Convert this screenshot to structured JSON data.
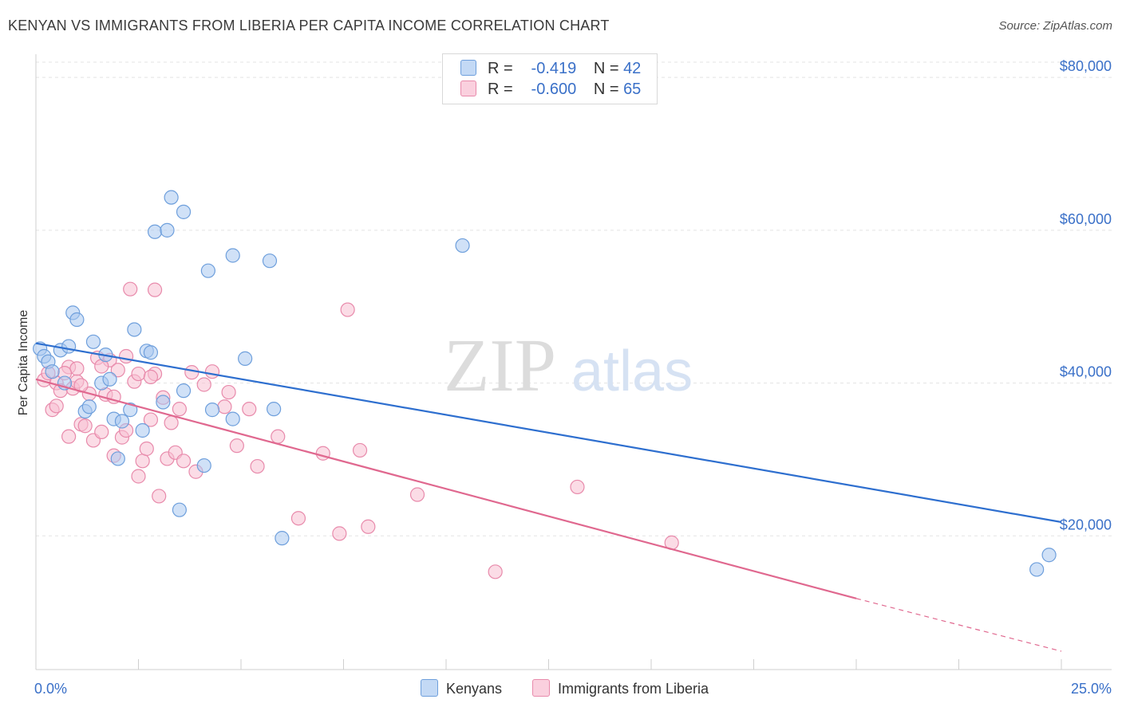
{
  "header": {
    "title": "KENYAN VS IMMIGRANTS FROM LIBERIA PER CAPITA INCOME CORRELATION CHART",
    "source": "Source: ZipAtlas.com"
  },
  "stats_legend": [
    {
      "r_label": "R =",
      "r_value": "-0.419",
      "n_label": "N =",
      "n_value": "42"
    },
    {
      "r_label": "R =",
      "r_value": "-0.600",
      "n_label": "N =",
      "n_value": "65"
    }
  ],
  "watermark": {
    "zip": "ZIP",
    "atlas": "atlas"
  },
  "colors": {
    "kenyans_fill": "#a9c8f0",
    "kenyans_stroke": "#6e9fdc",
    "kenyans_line": "#2e6fcf",
    "liberia_fill": "#f7bfd2",
    "liberia_stroke": "#e88aab",
    "liberia_line": "#e0688f",
    "axis_label": "#3a70c8",
    "grid": "#e3e3e3"
  },
  "chart_data": {
    "type": "scatter",
    "title": "KENYAN VS IMMIGRANTS FROM LIBERIA PER CAPITA INCOME CORRELATION CHART",
    "xlabel": "",
    "ylabel": "Per Capita Income",
    "xlim": [
      0,
      25
    ],
    "ylim": [
      2500,
      82000
    ],
    "x_tick_labels": [
      "0.0%",
      "25.0%"
    ],
    "y_ticks": [
      20000,
      40000,
      60000,
      80000
    ],
    "y_tick_labels": [
      "$20,000",
      "$40,000",
      "$60,000",
      "$80,000"
    ],
    "grid": true,
    "legend_position": "bottom",
    "series": [
      {
        "name": "Kenyans",
        "points": [
          [
            0.1,
            44.5
          ],
          [
            0.2,
            43.5
          ],
          [
            0.3,
            42.8
          ],
          [
            0.4,
            41.5
          ],
          [
            0.6,
            44.3
          ],
          [
            0.7,
            40.0
          ],
          [
            0.8,
            44.8
          ],
          [
            0.9,
            49.2
          ],
          [
            1.0,
            48.3
          ],
          [
            1.2,
            36.3
          ],
          [
            1.3,
            36.9
          ],
          [
            1.4,
            45.4
          ],
          [
            1.6,
            40.0
          ],
          [
            1.7,
            43.7
          ],
          [
            1.8,
            40.5
          ],
          [
            1.9,
            35.3
          ],
          [
            2.0,
            30.1
          ],
          [
            2.1,
            35.0
          ],
          [
            2.3,
            36.5
          ],
          [
            2.4,
            47.0
          ],
          [
            2.6,
            33.8
          ],
          [
            2.7,
            44.2
          ],
          [
            2.8,
            44.0
          ],
          [
            2.9,
            59.8
          ],
          [
            3.1,
            37.5
          ],
          [
            3.2,
            60.0
          ],
          [
            3.3,
            64.3
          ],
          [
            3.5,
            23.4
          ],
          [
            3.6,
            39.0
          ],
          [
            3.6,
            62.4
          ],
          [
            4.1,
            29.2
          ],
          [
            4.2,
            54.7
          ],
          [
            4.3,
            36.5
          ],
          [
            4.8,
            56.7
          ],
          [
            4.8,
            35.3
          ],
          [
            5.1,
            43.2
          ],
          [
            5.7,
            56.0
          ],
          [
            5.8,
            36.6
          ],
          [
            6.0,
            19.7
          ],
          [
            10.4,
            58.0
          ],
          [
            24.4,
            15.6
          ],
          [
            24.7,
            17.5
          ]
        ]
      },
      {
        "name": "Immigrants from Liberia",
        "points": [
          [
            0.2,
            40.4
          ],
          [
            0.3,
            41.3
          ],
          [
            0.4,
            36.5
          ],
          [
            0.5,
            40.0
          ],
          [
            0.5,
            37.0
          ],
          [
            0.6,
            39.0
          ],
          [
            0.8,
            33.0
          ],
          [
            0.8,
            42.1
          ],
          [
            0.9,
            39.3
          ],
          [
            1.0,
            40.2
          ],
          [
            1.0,
            41.9
          ],
          [
            1.1,
            34.6
          ],
          [
            1.2,
            34.4
          ],
          [
            1.3,
            38.6
          ],
          [
            1.4,
            32.5
          ],
          [
            1.5,
            43.3
          ],
          [
            1.6,
            33.6
          ],
          [
            1.7,
            38.5
          ],
          [
            1.8,
            43.0
          ],
          [
            1.9,
            38.2
          ],
          [
            1.9,
            30.5
          ],
          [
            2.0,
            41.7
          ],
          [
            2.1,
            32.9
          ],
          [
            2.2,
            33.8
          ],
          [
            2.3,
            52.3
          ],
          [
            2.4,
            40.2
          ],
          [
            2.5,
            27.8
          ],
          [
            2.5,
            41.2
          ],
          [
            2.6,
            29.8
          ],
          [
            2.7,
            31.4
          ],
          [
            2.8,
            35.2
          ],
          [
            2.9,
            52.2
          ],
          [
            2.9,
            41.2
          ],
          [
            3.0,
            25.2
          ],
          [
            3.1,
            38.1
          ],
          [
            3.2,
            30.1
          ],
          [
            3.3,
            34.8
          ],
          [
            3.4,
            30.9
          ],
          [
            3.5,
            36.6
          ],
          [
            3.6,
            29.8
          ],
          [
            3.8,
            41.4
          ],
          [
            3.9,
            28.4
          ],
          [
            4.1,
            39.8
          ],
          [
            4.3,
            41.5
          ],
          [
            4.6,
            36.9
          ],
          [
            4.7,
            38.8
          ],
          [
            4.9,
            31.8
          ],
          [
            5.2,
            36.6
          ],
          [
            5.4,
            29.1
          ],
          [
            5.9,
            33.0
          ],
          [
            6.4,
            22.3
          ],
          [
            7.0,
            30.8
          ],
          [
            7.4,
            20.3
          ],
          [
            7.6,
            49.6
          ],
          [
            7.9,
            31.2
          ],
          [
            8.1,
            21.2
          ],
          [
            9.3,
            25.4
          ],
          [
            11.2,
            15.3
          ],
          [
            13.2,
            26.4
          ],
          [
            15.5,
            19.1
          ],
          [
            1.1,
            39.7
          ],
          [
            1.6,
            42.2
          ],
          [
            2.8,
            40.8
          ],
          [
            0.7,
            41.3
          ],
          [
            2.2,
            43.5
          ]
        ]
      }
    ],
    "trendlines": [
      {
        "series": "Kenyans",
        "x": [
          0,
          25
        ],
        "y": [
          45.2,
          21.8
        ]
      },
      {
        "series": "Immigrants from Liberia",
        "x": [
          0,
          20,
          25
        ],
        "y": [
          40.5,
          11.8,
          4.9
        ],
        "dashed_after_x": 20
      }
    ]
  },
  "legend_bottom": {
    "kenyans": "Kenyans",
    "liberia": "Immigrants from Liberia"
  }
}
